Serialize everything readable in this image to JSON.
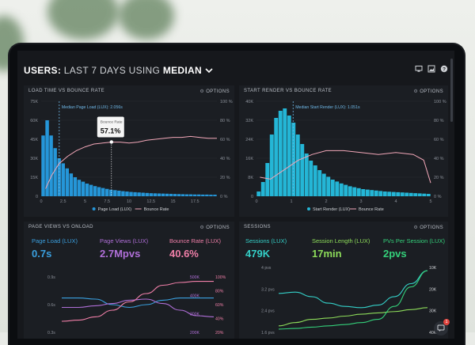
{
  "header": {
    "title_prefix": "USERS:",
    "title_range": "LAST 7 DAYS",
    "title_using": "USING",
    "title_stat": "MEDIAN",
    "icons": [
      "monitor-icon",
      "image-icon",
      "help-icon"
    ]
  },
  "options_label": "OPTIONS",
  "panels": {
    "load_vs_bounce": {
      "title": "LOAD TIME VS BOUNCE RATE",
      "median_label": "Median Page Load (LUX): 2.056s",
      "tooltip_label": "Bounce Rate",
      "tooltip_value": "57.1%",
      "legend": [
        "Page Load (LUX)",
        "Bounce Rate"
      ]
    },
    "render_vs_bounce": {
      "title": "START RENDER VS BOUNCE RATE",
      "median_label": "Median Start Render (LUX): 1.051s",
      "legend": [
        "Start Render (LUX)",
        "Bounce Rate"
      ]
    },
    "pageviews": {
      "title": "PAGE VIEWS VS ONLOAD",
      "metrics": [
        {
          "label": "Page Load (LUX)",
          "value": "0.7s",
          "color": "#3aa0e0"
        },
        {
          "label": "Page Views (LUX)",
          "value": "2.7Mpvs",
          "color": "#b06fd8"
        },
        {
          "label": "Bounce Rate (LUX)",
          "value": "40.6%",
          "color": "#f07fa8"
        }
      ]
    },
    "sessions": {
      "title": "SESSIONS",
      "metrics": [
        {
          "label": "Sessions (LUX)",
          "value": "479K",
          "color": "#34d0c8"
        },
        {
          "label": "Session Length (LUX)",
          "value": "17min",
          "color": "#8ddc5a"
        },
        {
          "label": "PVs Per Session (LUX)",
          "value": "2pvs",
          "color": "#34d07a"
        }
      ]
    }
  },
  "chart_data": [
    {
      "type": "bar",
      "title": "LOAD TIME VS BOUNCE RATE",
      "xlim": [
        0,
        20
      ],
      "ylim": [
        0,
        75000
      ],
      "y2lim": [
        0,
        100
      ],
      "x_ticks": [
        "0",
        "2.5",
        "5",
        "7.5",
        "10",
        "12.5",
        "15",
        "17.5"
      ],
      "y_ticks": [
        "75K",
        "60K",
        "45K",
        "30K",
        "15K",
        "0"
      ],
      "y2_ticks": [
        "100 %",
        "80 %",
        "60 %",
        "40 %",
        "20 %",
        "0 %"
      ],
      "median_x": 2.056,
      "bars": [
        48000,
        60000,
        48000,
        38000,
        30000,
        26000,
        22000,
        18000,
        15000,
        13000,
        11500,
        10000,
        9000,
        8000,
        7200,
        6500,
        5800,
        5200,
        4800,
        4400,
        4000,
        3700,
        3400,
        3200,
        3000,
        2800,
        2600,
        2400,
        2300,
        2200,
        2100,
        2000,
        1900,
        1800,
        1700,
        1600,
        1500,
        1500,
        1400,
        1400,
        1300,
        1300,
        1200,
        1200
      ],
      "line": [
        [
          0.5,
          8
        ],
        [
          1.2,
          22
        ],
        [
          2,
          34
        ],
        [
          3,
          42
        ],
        [
          4,
          48
        ],
        [
          5,
          52
        ],
        [
          6,
          55
        ],
        [
          7,
          56
        ],
        [
          8,
          57
        ],
        [
          9,
          57
        ],
        [
          10,
          56
        ],
        [
          11,
          57
        ],
        [
          12,
          59
        ],
        [
          13,
          60
        ],
        [
          14,
          61
        ],
        [
          15,
          62
        ],
        [
          16,
          62
        ],
        [
          17,
          63
        ],
        [
          18,
          62
        ],
        [
          19,
          61
        ],
        [
          20,
          61
        ]
      ],
      "tooltip_point": [
        8,
        57.1
      ],
      "legend": [
        "Page Load (LUX)",
        "Bounce Rate"
      ]
    },
    {
      "type": "bar",
      "title": "START RENDER VS BOUNCE RATE",
      "xlim": [
        0,
        5
      ],
      "ylim": [
        0,
        40000
      ],
      "y2lim": [
        0,
        100
      ],
      "x_ticks": [
        "0",
        "1",
        "2",
        "3",
        "4",
        "5"
      ],
      "y_ticks": [
        "40K",
        "32K",
        "24K",
        "16K",
        "8K",
        "0"
      ],
      "y2_ticks": [
        "100 %",
        "80 %",
        "60 %",
        "40 %",
        "20 %",
        "0 %"
      ],
      "median_x": 1.051,
      "bars": [
        2000,
        6000,
        14000,
        26000,
        33000,
        36000,
        37000,
        34000,
        31000,
        26000,
        22000,
        18000,
        15000,
        13000,
        11000,
        9500,
        8200,
        7000,
        6200,
        5400,
        4800,
        4200,
        3800,
        3400,
        3000,
        2800,
        2600,
        2400,
        2200,
        2000,
        1900,
        1800,
        1700,
        1600,
        1500,
        1400,
        1300,
        1200,
        1100,
        1000
      ],
      "line": [
        [
          0.1,
          20
        ],
        [
          0.4,
          18
        ],
        [
          0.8,
          28
        ],
        [
          1.2,
          38
        ],
        [
          1.6,
          44
        ],
        [
          2,
          48
        ],
        [
          2.5,
          48
        ],
        [
          3,
          46
        ],
        [
          3.5,
          44
        ],
        [
          4,
          46
        ],
        [
          4.5,
          44
        ],
        [
          4.8,
          38
        ],
        [
          5,
          14
        ]
      ],
      "legend": [
        "Start Render (LUX)",
        "Bounce Rate"
      ]
    },
    {
      "type": "line",
      "title": "PAGE VIEWS VS ONLOAD",
      "y_ticks": [
        "0.9s",
        "0.6s",
        "0.3s"
      ],
      "y_mid_ticks": [
        "500K",
        "400K",
        "300K",
        "200K"
      ],
      "y2_ticks": [
        "100%",
        "80%",
        "60%",
        "40%",
        "20%"
      ],
      "series": [
        {
          "color": "#3aa0e0",
          "values": [
            0.62,
            0.62,
            0.6,
            0.5,
            0.45,
            0.5,
            0.58,
            0.62,
            0.62,
            0.62
          ]
        },
        {
          "color": "#b06fd8",
          "values": [
            0.45,
            0.45,
            0.48,
            0.52,
            0.58,
            0.6,
            0.52,
            0.4,
            0.3,
            0.28
          ]
        },
        {
          "color": "#f07fa8",
          "values": [
            0.2,
            0.22,
            0.28,
            0.4,
            0.55,
            0.7,
            0.85,
            0.9,
            0.92,
            0.92
          ]
        }
      ]
    },
    {
      "type": "line",
      "title": "SESSIONS",
      "y_ticks": [
        "4 pvs",
        "3.2 pvs",
        "2.4 pvs",
        "1.6 pvs"
      ],
      "y2_ticks": [
        "10K",
        "20K",
        "30K",
        "40K"
      ],
      "series": [
        {
          "color": "#34d0c8",
          "values": [
            0.6,
            0.62,
            0.55,
            0.45,
            0.4,
            0.38,
            0.42,
            0.55,
            0.75,
            0.95
          ]
        },
        {
          "color": "#8ddc5a",
          "values": [
            0.1,
            0.15,
            0.2,
            0.22,
            0.25,
            0.28,
            0.3,
            0.32,
            0.35,
            0.38
          ]
        },
        {
          "color": "#34d07a",
          "values": [
            0.05,
            0.06,
            0.08,
            0.1,
            0.12,
            0.15,
            0.2,
            0.4,
            0.7,
            0.95
          ]
        }
      ]
    }
  ],
  "chat_badge": "1"
}
